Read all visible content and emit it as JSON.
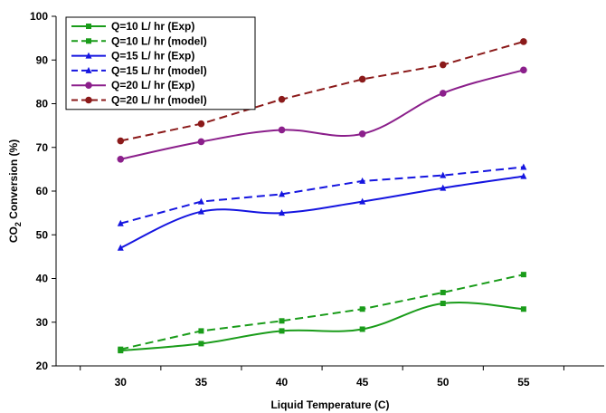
{
  "chart_data": {
    "type": "line",
    "xlabel": "Liquid Temperature (C)",
    "ylabel_main": "CO",
    "ylabel_sub": "2",
    "ylabel_rest": " Conversion (%)",
    "x": [
      30,
      35,
      40,
      45,
      50,
      55
    ],
    "x_ticks": [
      "30",
      "35",
      "40",
      "45",
      "50",
      "55"
    ],
    "xlim": [
      26,
      60
    ],
    "ylim": [
      20,
      100
    ],
    "y_ticks": [
      "20",
      "30",
      "40",
      "50",
      "60",
      "70",
      "80",
      "90",
      "100"
    ],
    "grid": false,
    "legend_position": "top-left",
    "series": [
      {
        "name": "Q=10 L/ hr (Exp)",
        "values": [
          23.5,
          25.1,
          28.0,
          28.4,
          34.3,
          33.0
        ],
        "color": "#1a9c1a",
        "marker": "square",
        "dashed": false,
        "smooth": true
      },
      {
        "name": "Q=10 L/ hr (model)",
        "values": [
          23.8,
          28.0,
          30.3,
          33.0,
          36.8,
          40.9
        ],
        "color": "#1a9c1a",
        "marker": "square",
        "dashed": true,
        "smooth": false
      },
      {
        "name": "Q=15 L/ hr (Exp)",
        "values": [
          47.0,
          55.3,
          55.0,
          57.6,
          60.7,
          63.4
        ],
        "color": "#1515e0",
        "marker": "triangle",
        "dashed": false,
        "smooth": true
      },
      {
        "name": "Q=15 L/ hr (model)",
        "values": [
          52.6,
          57.6,
          59.3,
          62.3,
          63.6,
          65.5
        ],
        "color": "#1515e0",
        "marker": "triangle",
        "dashed": true,
        "smooth": false
      },
      {
        "name": "Q=20 L/ hr (Exp)",
        "values": [
          67.3,
          71.3,
          74.0,
          73.1,
          82.4,
          87.7
        ],
        "color": "#8b1f8b",
        "marker": "circle",
        "dashed": false,
        "smooth": true
      },
      {
        "name": "Q=20 L/ hr (model)",
        "values": [
          71.5,
          75.4,
          81.0,
          85.6,
          88.9,
          94.2
        ],
        "color": "#8b1a1a",
        "marker": "circle",
        "dashed": true,
        "smooth": false
      }
    ]
  }
}
